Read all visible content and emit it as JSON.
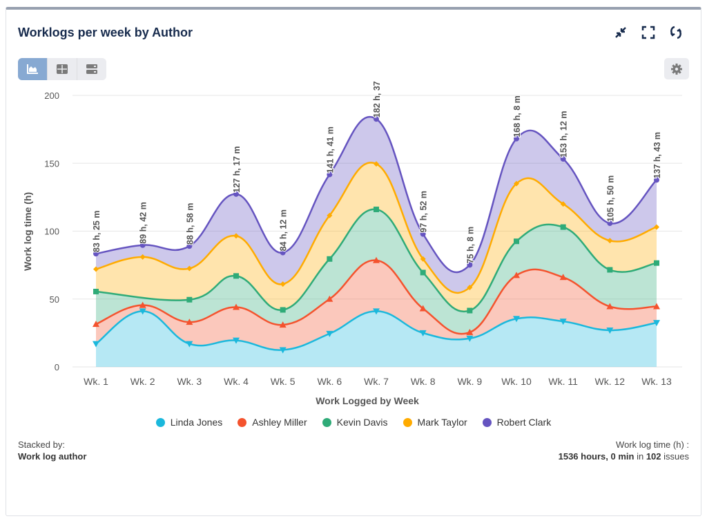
{
  "header": {
    "title": "Worklogs per week by Author"
  },
  "icons": {
    "collapse": "collapse-icon",
    "fullscreen": "fullscreen-icon",
    "refresh": "refresh-icon",
    "chart_view": "area-chart-icon",
    "table_view": "table-icon",
    "list_view": "list-icon",
    "settings": "gear-icon"
  },
  "footer": {
    "stacked_label": "Stacked by:",
    "stacked_value": "Work log author",
    "total_label": "Work log time (h) :",
    "total_value": "1536 hours, 0 min",
    "in_text": "in",
    "issues_count": "102",
    "issues_text": "issues"
  },
  "chart_data": {
    "type": "area",
    "stacked": true,
    "smooth": true,
    "xlabel": "Work Logged by Week",
    "ylabel": "Work log time (h)",
    "ylim": [
      0,
      200
    ],
    "yticks": [
      0,
      50,
      100,
      150,
      200
    ],
    "grid": true,
    "legend_position": "bottom",
    "categories": [
      "Wk. 1",
      "Wk. 2",
      "Wk. 3",
      "Wk. 4",
      "Wk. 5",
      "Wk. 6",
      "Wk. 7",
      "Wk. 8",
      "Wk. 9",
      "Wk. 10",
      "Wk. 11",
      "Wk. 12",
      "Wk. 13"
    ],
    "series": [
      {
        "name": "Linda Jones",
        "color": "#1bb8dc",
        "marker": "triangle-down",
        "values": [
          17,
          41,
          17,
          19.5,
          12.5,
          24.5,
          41,
          25,
          21,
          35.5,
          33.5,
          27,
          32.5
        ]
      },
      {
        "name": "Ashley Miller",
        "color": "#f4532e",
        "marker": "triangle",
        "values": [
          14.5,
          4.5,
          16,
          24.5,
          18.5,
          25.5,
          37.5,
          18,
          4.5,
          32,
          32.5,
          17.5,
          12
        ]
      },
      {
        "name": "Kevin Davis",
        "color": "#2fab78",
        "marker": "square",
        "values": [
          24,
          null,
          16.5,
          23,
          11,
          29.5,
          37.5,
          26.5,
          16,
          25,
          37,
          27,
          32
        ]
      },
      {
        "name": "Mark Taylor",
        "color": "#ffab00",
        "marker": "diamond",
        "values": [
          16.5,
          35.5,
          23,
          29.5,
          19,
          32,
          33.5,
          10,
          17,
          42.5,
          17,
          21.5,
          26.5
        ]
      },
      {
        "name": "Robert Clark",
        "color": "#6554c0",
        "marker": "circle",
        "values": [
          11.4,
          8.7,
          16.5,
          30.8,
          23.2,
          30.2,
          33.1,
          18.4,
          16.6,
          33.1,
          33.2,
          12.8,
          34.7
        ]
      }
    ],
    "total_labels": [
      "83 h, 25 m",
      "89 h, 42 m",
      "88 h, 58 m",
      "127 h, 17 m",
      "84 h, 12 m",
      "141 h, 41 m",
      "182 h, 37",
      "97 h, 52 m",
      "75 h, 8 m",
      "168 h, 8 m",
      "153 h, 12 m",
      "105 h, 50 m",
      "137 h, 43 m"
    ]
  }
}
